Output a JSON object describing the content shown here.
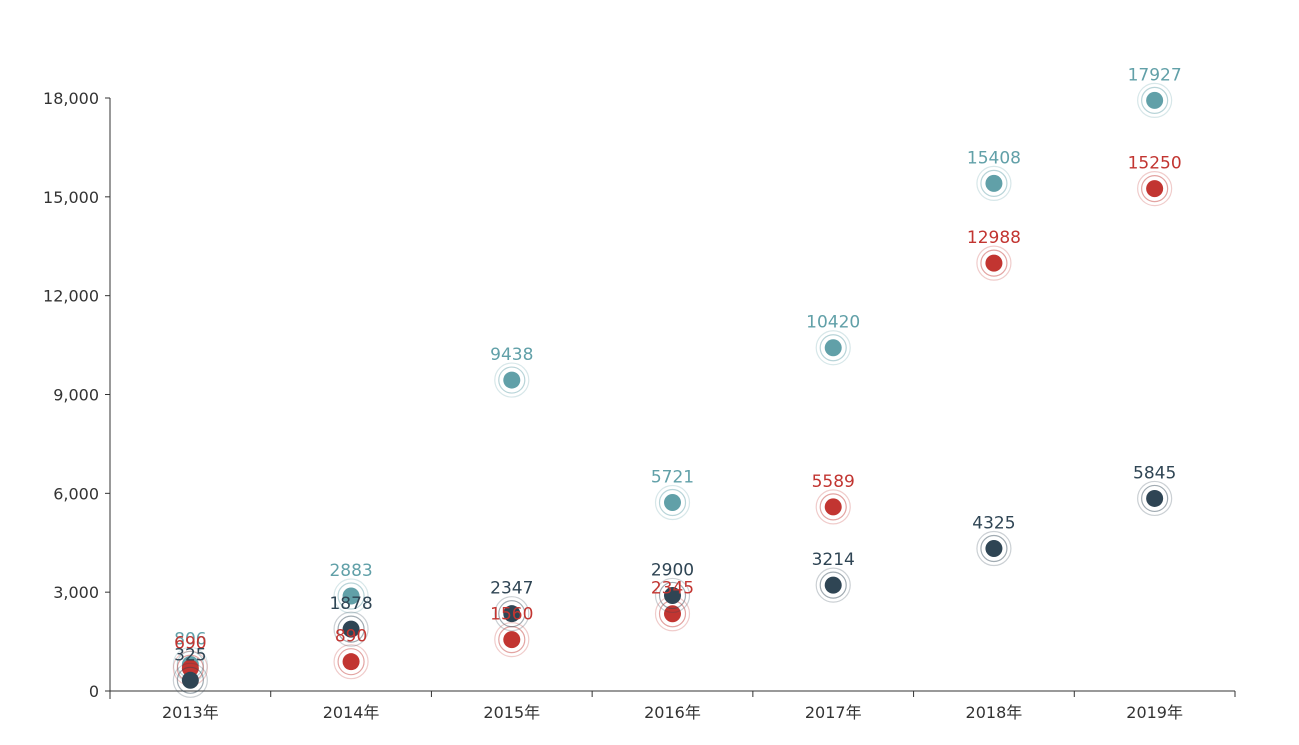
{
  "chart_data": {
    "type": "scatter",
    "title": "",
    "xlabel": "",
    "ylabel": "",
    "categories": [
      "2013年",
      "2014年",
      "2015年",
      "2016年",
      "2017年",
      "2018年",
      "2019年"
    ],
    "ylim": [
      0,
      18000
    ],
    "yticks": [
      "0",
      "3,000",
      "6,000",
      "9,000",
      "12,000",
      "15,000",
      "18,000"
    ],
    "ytick_values": [
      0,
      3000,
      6000,
      9000,
      12000,
      15000,
      18000
    ],
    "grid": false,
    "legend": "none",
    "series": [
      {
        "color": "#61a0a8",
        "values": [
          806,
          2883,
          9438,
          5721,
          10420,
          15408,
          17927
        ]
      },
      {
        "color": "#c23531",
        "values": [
          690,
          890,
          1560,
          2345,
          5589,
          12988,
          15250
        ]
      },
      {
        "color": "#2f4554",
        "values": [
          325,
          1878,
          2347,
          2900,
          3214,
          4325,
          5845
        ]
      }
    ]
  }
}
